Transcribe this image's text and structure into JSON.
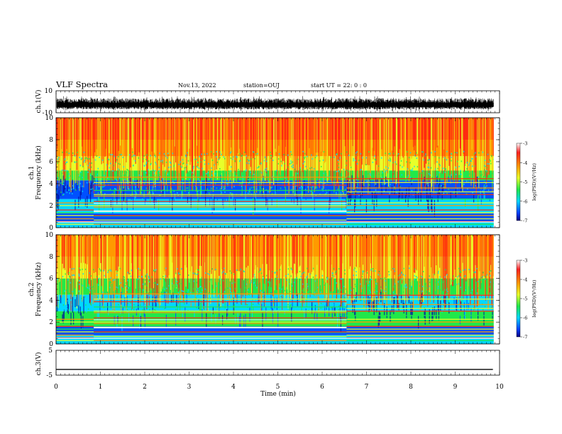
{
  "header": {
    "title": "VLF Spectra",
    "date": "Nov.13, 2022",
    "station": "station=OUJ",
    "start": "start  UT =   22: 0  : 0"
  },
  "chart_data": [
    {
      "type": "line",
      "name": "waveform-ch1",
      "ylabel": "ch.1(V)",
      "ylim": [
        -10,
        10
      ],
      "y_tick_labels": [
        "10",
        "-10"
      ],
      "xlim": [
        0,
        10
      ],
      "x": [
        0,
        10
      ],
      "y": [
        -3,
        -3
      ],
      "description_visible": "dense noisy waveform roughly between -7 and 3 V"
    },
    {
      "type": "heatmap",
      "name": "spectrogram-ch1",
      "ylabel": "ch.1\nFrequency  (kHz)",
      "ylim": [
        0,
        10
      ],
      "y_ticks": [
        0,
        2,
        4,
        6,
        8,
        10
      ],
      "xlim": [
        0,
        10
      ],
      "colorbar": {
        "label": "log(PSD)(V²/Hz)",
        "ticks": [
          -3,
          -4,
          -5,
          -6,
          -7
        ],
        "range": [
          -7,
          -3
        ]
      }
    },
    {
      "type": "heatmap",
      "name": "spectrogram-ch2",
      "ylabel": "ch.2\nFrequency  (kHz)",
      "ylim": [
        0,
        10
      ],
      "y_ticks": [
        0,
        2,
        4,
        6,
        8,
        10
      ],
      "xlim": [
        0,
        10
      ],
      "colorbar": {
        "label": "log(PSD)(V²/Hz)",
        "ticks": [
          -3,
          -4,
          -5,
          -6,
          -7
        ],
        "range": [
          -7,
          -3
        ]
      }
    },
    {
      "type": "line",
      "name": "waveform-ch3",
      "ylabel": "ch.3(V)",
      "ylim": [
        -5,
        5
      ],
      "y_tick_labels": [
        "5",
        "-5"
      ],
      "xlim": [
        0,
        10
      ],
      "x": [
        0,
        9.85
      ],
      "y": [
        -2.7,
        -2.7
      ]
    }
  ],
  "xaxis": {
    "label": "Time  (min)",
    "ticks": [
      0,
      1,
      2,
      3,
      4,
      5,
      6,
      7,
      8,
      9,
      10
    ]
  },
  "colors": {
    "red": "#ff2a10",
    "orange": "#ff9a00",
    "yellow": "#e8ff2a",
    "green": "#20e84a",
    "cyan": "#00d8ff",
    "blue": "#0050ff",
    "navy": "#0010a0"
  }
}
